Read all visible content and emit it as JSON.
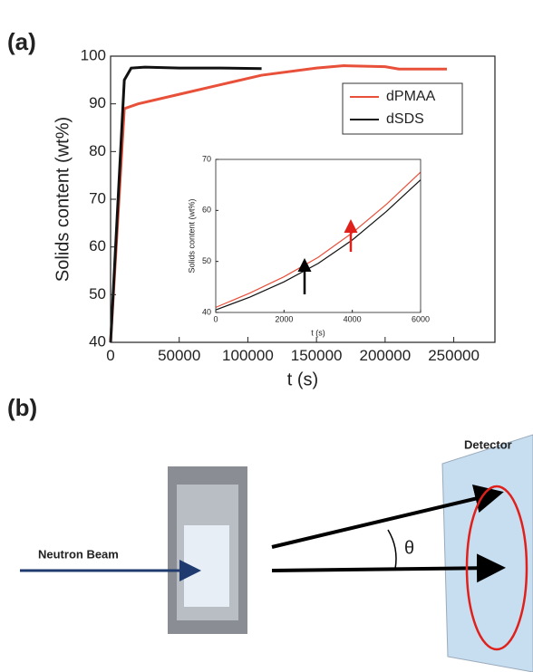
{
  "panel_labels": [
    "(a)",
    "(b)"
  ],
  "chart_data": [
    {
      "type": "line",
      "y_label": "Solids content (wt%)",
      "x_label": "t (s)",
      "xlim": [
        0,
        280000
      ],
      "ylim": [
        40,
        100
      ],
      "xticks": [
        0,
        50000,
        100000,
        150000,
        200000,
        250000
      ],
      "yticks": [
        40,
        50,
        60,
        70,
        80,
        90,
        100
      ],
      "legend": "upper right",
      "series": [
        {
          "name": "dPMAA",
          "color": "#e8503a",
          "x": [
            0,
            10000,
            20000,
            50000,
            80000,
            110000,
            150000,
            170000,
            200000,
            210000,
            245000
          ],
          "values": [
            40,
            89,
            90,
            92,
            94,
            96,
            97.5,
            98,
            97.8,
            97.3,
            97.3
          ]
        },
        {
          "name": "dSDS",
          "color": "#111111",
          "x": [
            0,
            10000,
            15000,
            25000,
            50000,
            80000,
            110000
          ],
          "values": [
            40,
            95,
            97.5,
            97.7,
            97.5,
            97.5,
            97.4
          ]
        }
      ]
    },
    {
      "type": "line",
      "y_label": "Solids content (wt%)",
      "x_label": "t (s)",
      "xlim": [
        0,
        6000
      ],
      "ylim": [
        40,
        70
      ],
      "xticks": [
        0,
        2000,
        4000,
        6000
      ],
      "yticks": [
        40,
        50,
        60,
        70
      ],
      "series": [
        {
          "color": "#e8503a",
          "x": [
            0,
            1000,
            2000,
            3000,
            4000,
            5000,
            6000
          ],
          "values": [
            41,
            43.8,
            47,
            50.8,
            55.6,
            61.2,
            67.5
          ]
        },
        {
          "color": "#111111",
          "x": [
            0,
            1000,
            2000,
            3000,
            4000,
            5000,
            6000
          ],
          "values": [
            40.5,
            43,
            46,
            49.6,
            54.2,
            59.8,
            66
          ]
        }
      ]
    }
  ],
  "diagram": {
    "beam_label": "Neutron Beam",
    "detector_label": "Detector",
    "angle_label": "θ"
  }
}
